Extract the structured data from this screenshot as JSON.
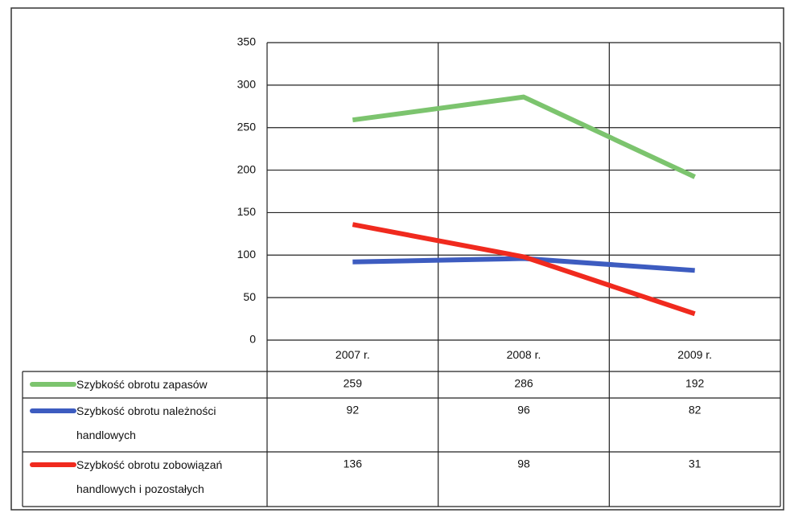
{
  "chart_data": {
    "type": "line",
    "categories": [
      "2007 r.",
      "2008 r.",
      "2009 r."
    ],
    "series": [
      {
        "name": "Szybkość obrotu zapasów",
        "color": "#7cc46e",
        "values": [
          259,
          286,
          192
        ]
      },
      {
        "name": "Szybkość obrotu należności handlowych",
        "color": "#3d5cc0",
        "values": [
          92,
          96,
          82
        ]
      },
      {
        "name": "Szybkość obrotu zobowiązań handlowych i pozostałych",
        "color": "#f02a1e",
        "values": [
          136,
          98,
          31
        ]
      }
    ],
    "ylim": [
      0,
      350
    ],
    "yticks": [
      0,
      50,
      100,
      150,
      200,
      250,
      300,
      350
    ],
    "grid": true
  }
}
